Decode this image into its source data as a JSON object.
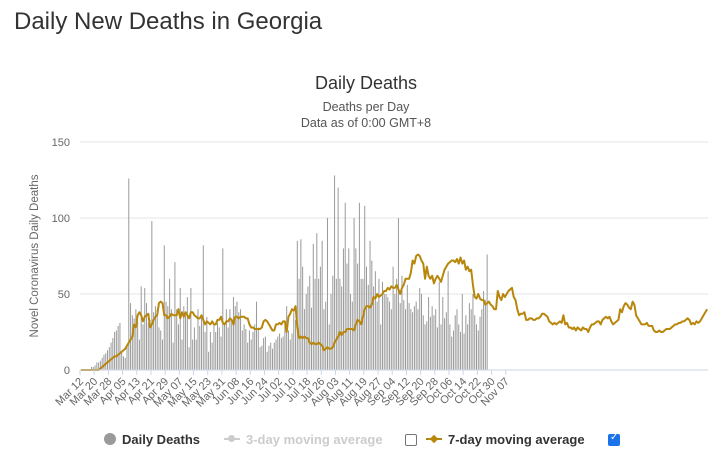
{
  "page": {
    "heading": "Daily New Deaths in Georgia"
  },
  "chart_data": {
    "type": "bar",
    "title": "Daily Deaths",
    "subtitle": "Deaths per Day",
    "subtitle2": "Data as of 0:00 GMT+8",
    "ylabel": "Novel Coronavirus Daily Deaths",
    "xlabel": "",
    "ylim": [
      0,
      150
    ],
    "yticks": [
      0,
      50,
      100,
      150
    ],
    "grid": true,
    "colors": {
      "bars": "#9a9a9a",
      "ma7": "#b8860b",
      "ma3": "#cccccc",
      "grid": "#e6e6e6",
      "axis": "#ccd6eb"
    },
    "start_date": "Mar 12",
    "xtick_labels": [
      "Mar 12",
      "Mar 20",
      "Mar 28",
      "Apr 05",
      "Apr 13",
      "Apr 21",
      "Apr 29",
      "May 07",
      "May 15",
      "May 23",
      "May 31",
      "Jun 08",
      "Jun 16",
      "Jun 24",
      "Jul 02",
      "Jul 10",
      "Jul 18",
      "Jul 26",
      "Aug 03",
      "Aug 11",
      "Aug 19",
      "Aug 27",
      "Sep 04",
      "Sep 12",
      "Sep 20",
      "Sep 28",
      "Oct 06",
      "Oct 14",
      "Oct 22",
      "Oct 30",
      "Nov 07"
    ],
    "series": [
      {
        "name": "Daily Deaths",
        "values": [
          0,
          0,
          0,
          0,
          0,
          0,
          2,
          2,
          3,
          5,
          5,
          6,
          8,
          10,
          11,
          13,
          15,
          18,
          21,
          25,
          26,
          29,
          31,
          12,
          9,
          8,
          16,
          126,
          44,
          36,
          34,
          40,
          32,
          20,
          55,
          30,
          54,
          44,
          31,
          33,
          98,
          38,
          42,
          40,
          28,
          26,
          20,
          82,
          45,
          42,
          60,
          40,
          18,
          71,
          40,
          30,
          54,
          20,
          42,
          36,
          48,
          15,
          54,
          20,
          28,
          20,
          40,
          29,
          35,
          82,
          25,
          35,
          12,
          25,
          18,
          30,
          25,
          31,
          28,
          22,
          80,
          30,
          40,
          28,
          40,
          32,
          48,
          42,
          45,
          38,
          40,
          26,
          30,
          27,
          18,
          26,
          20,
          25,
          30,
          45,
          28,
          15,
          16,
          21,
          22,
          12,
          16,
          18,
          14,
          18,
          20,
          22,
          24,
          21,
          22,
          30,
          42,
          26,
          20,
          24,
          38,
          33,
          85,
          60,
          86,
          68,
          40,
          50,
          55,
          62,
          41,
          83,
          60,
          90,
          60,
          68,
          85,
          40,
          45,
          100,
          30,
          50,
          62,
          128,
          60,
          120,
          60,
          55,
          80,
          110,
          70,
          80,
          50,
          45,
          100,
          80,
          70,
          110,
          60,
          60,
          108,
          68,
          56,
          85,
          72,
          55,
          65,
          45,
          60,
          30,
          58,
          50,
          50,
          48,
          45,
          40,
          68,
          50,
          60,
          100,
          44,
          62,
          46,
          40,
          56,
          44,
          40,
          38,
          42,
          45,
          40,
          54,
          50,
          36,
          30,
          32,
          48,
          35,
          42,
          36,
          40,
          28,
          58,
          30,
          48,
          34,
          38,
          65,
          30,
          22,
          26,
          36,
          40,
          30,
          25,
          50,
          24,
          36,
          30,
          44,
          40,
          50,
          36,
          30,
          26,
          35,
          40,
          52,
          46,
          76
        ]
      },
      {
        "name": "7-day moving average",
        "values": [
          0,
          0,
          0,
          0,
          0,
          0,
          0,
          0,
          0,
          0,
          0,
          1,
          2,
          3,
          4,
          5,
          6,
          7,
          8,
          9,
          9,
          10,
          11,
          12,
          13,
          14,
          16,
          18,
          20,
          22,
          30,
          28,
          36,
          38,
          36,
          32,
          35,
          36,
          37,
          28,
          30,
          33,
          35,
          36,
          44,
          45,
          44,
          36,
          36,
          34,
          35,
          37,
          36,
          36,
          36,
          40,
          34,
          38,
          35,
          38,
          36,
          34,
          38,
          38,
          36,
          35,
          34,
          34,
          36,
          33,
          30,
          32,
          31,
          30,
          32,
          30,
          30,
          33,
          33,
          35,
          31,
          30,
          32,
          32,
          34,
          33,
          30,
          35,
          35,
          34,
          35,
          35,
          35,
          34,
          34,
          30,
          28,
          28,
          27,
          27,
          27,
          27,
          28,
          32,
          33,
          32,
          30,
          28,
          26,
          26,
          30,
          30,
          31,
          30,
          32,
          32,
          25,
          35,
          37,
          40,
          39,
          42,
          28,
          21,
          22,
          21,
          22,
          21,
          21,
          18,
          17,
          18,
          17,
          17,
          18,
          17,
          16,
          13,
          14,
          15,
          14,
          14,
          15,
          18,
          20,
          22,
          25,
          23,
          25,
          25,
          27,
          27,
          27,
          27,
          26,
          30,
          33,
          32,
          30,
          35,
          40,
          42,
          42,
          41,
          43,
          48,
          47,
          50,
          48,
          49,
          50,
          52,
          52,
          54,
          53,
          55,
          54,
          54,
          56,
          53,
          50,
          54,
          56,
          60,
          60,
          60,
          64,
          72,
          70,
          75,
          76,
          75,
          72,
          70,
          60,
          68,
          62,
          60,
          62,
          57,
          60,
          62,
          60,
          58,
          62,
          66,
          68,
          70,
          71,
          72,
          72,
          71,
          73,
          70,
          74,
          70,
          72,
          66,
          68,
          65,
          66,
          56,
          48,
          47,
          50,
          47,
          46,
          46,
          43,
          44,
          45,
          43,
          42,
          40,
          40,
          52,
          48,
          46,
          50,
          48,
          50,
          52,
          53,
          54,
          48,
          46,
          40,
          36,
          37,
          37,
          38,
          33,
          33,
          34,
          34,
          33,
          33,
          34,
          34,
          35,
          37,
          37,
          36,
          35,
          32,
          31,
          30,
          31,
          30,
          31,
          32,
          31,
          36,
          30,
          31,
          28,
          28,
          27,
          28,
          26,
          28,
          27,
          26,
          28,
          27,
          27,
          25,
          28,
          30,
          30,
          31,
          32,
          32,
          30,
          33,
          34,
          35,
          34,
          35,
          32,
          30,
          31,
          32,
          33,
          40,
          38,
          42,
          44,
          43,
          41,
          40,
          45,
          43,
          36,
          34,
          32,
          30,
          30,
          30,
          31,
          29,
          29,
          29,
          26,
          25,
          25,
          26,
          25,
          25,
          26,
          27,
          27,
          27,
          28,
          29,
          30,
          30,
          31,
          31,
          32,
          32,
          33,
          34,
          33,
          30,
          31,
          30,
          32,
          31,
          32,
          34,
          36,
          38,
          40
        ]
      }
    ],
    "legend": [
      {
        "label": "Daily Deaths",
        "visible": true
      },
      {
        "label": "3-day moving average",
        "visible": false
      },
      {
        "label": "7-day moving average",
        "visible": true
      }
    ]
  }
}
